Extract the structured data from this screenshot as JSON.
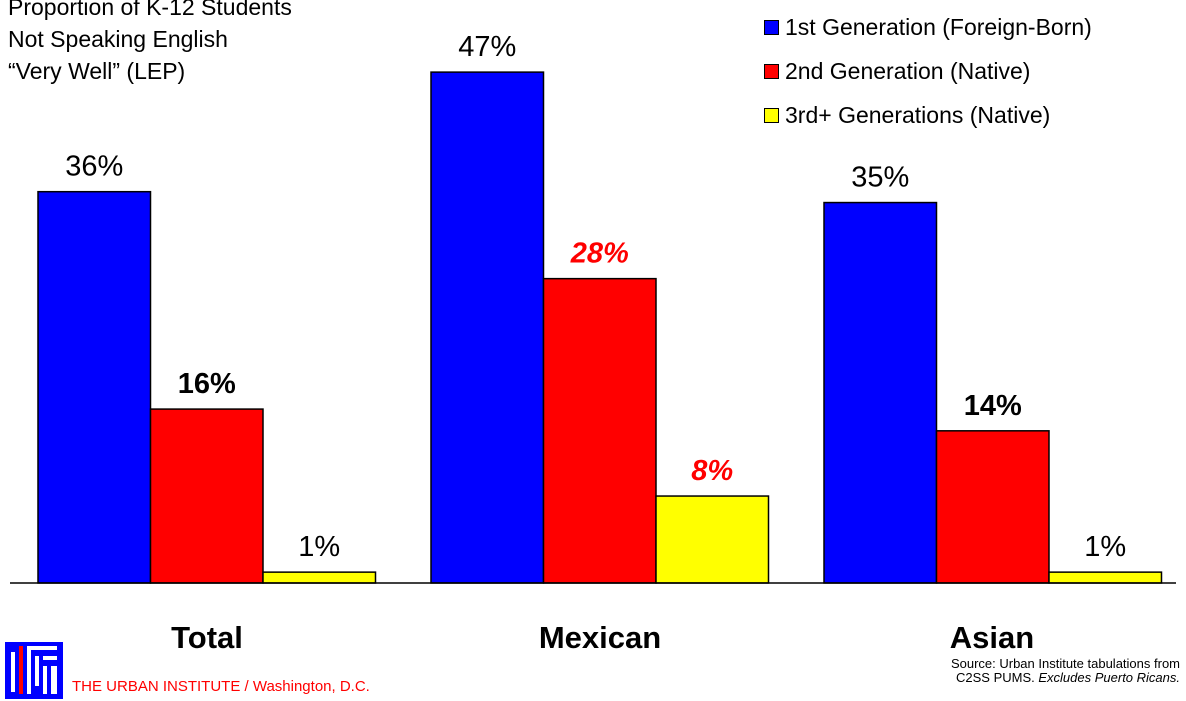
{
  "title_lines": [
    "Proportion of K-12 Students",
    "Not Speaking English",
    "“Very Well” (LEP)"
  ],
  "colors": {
    "gen1": "#0000ff",
    "gen2": "#ff0000",
    "gen3": "#ffff00",
    "highlight": "#ff0000"
  },
  "chart_data": {
    "type": "bar",
    "categories": [
      "Total",
      "Mexican",
      "Asian"
    ],
    "series": [
      {
        "name": "1st Generation (Foreign-Born)",
        "values": [
          36,
          47,
          35
        ],
        "labels": [
          "36%",
          "47%",
          "35%"
        ]
      },
      {
        "name": "2nd Generation (Native)",
        "values": [
          16,
          28,
          14
        ],
        "labels": [
          "16%",
          "28%",
          "14%"
        ]
      },
      {
        "name": "3rd+ Generations (Native)",
        "values": [
          1,
          8,
          1
        ],
        "labels": [
          "1%",
          "8%",
          "1%"
        ]
      }
    ],
    "label_styles": [
      [
        "normal",
        "normal",
        "normal"
      ],
      [
        "bold",
        "bold-italic-red",
        "bold"
      ],
      [
        "normal",
        "bold-italic-red",
        "normal"
      ]
    ],
    "ylim": [
      0,
      50
    ],
    "legend": "top-right",
    "grid": false
  },
  "footer": {
    "org_name": "THE URBAN INSTITUTE / Washington, D.C.",
    "source_line1": "Source:  Urban Institute tabulations from",
    "source_line2_prefix": "C2SS PUMS.  ",
    "source_line2_note": "Excludes Puerto Ricans."
  }
}
